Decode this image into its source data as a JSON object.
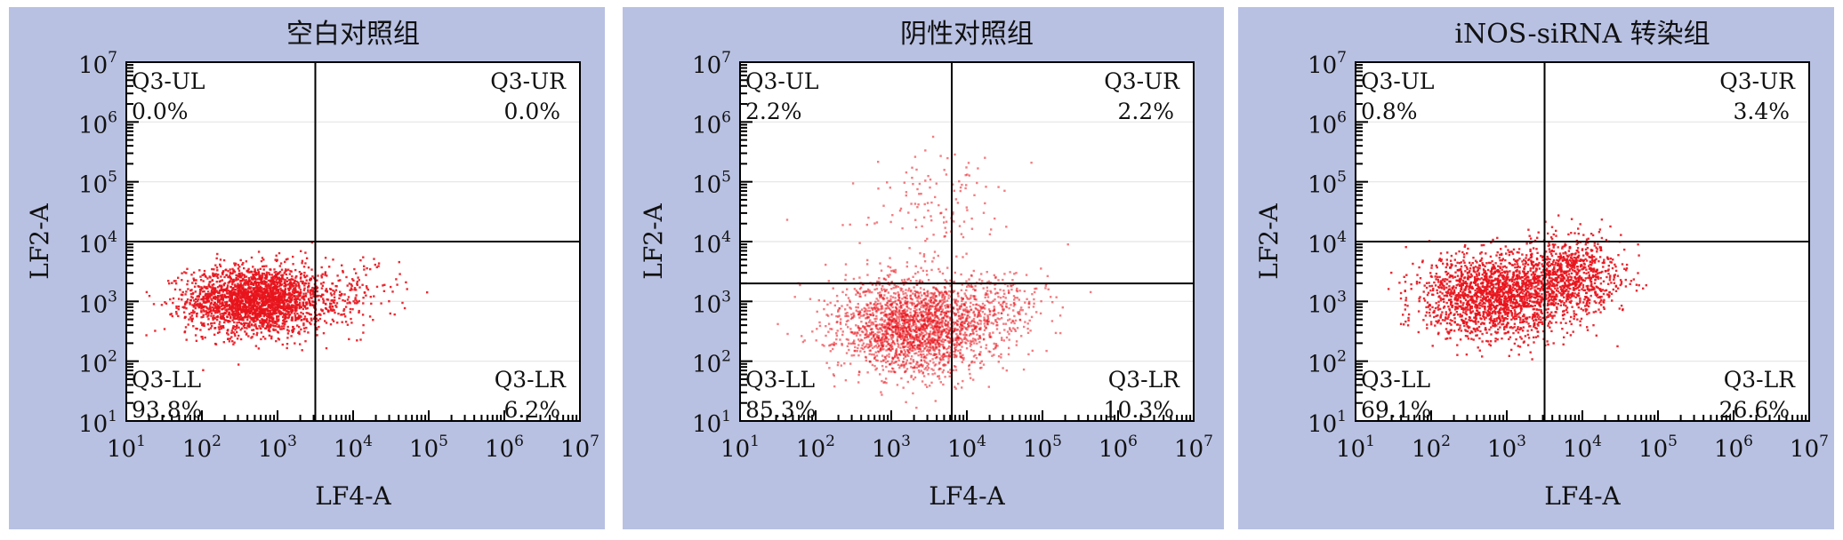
{
  "chart_data": [
    {
      "type": "scatter",
      "title": "空白对照组",
      "xlabel": "LF4-A",
      "ylabel": "LF2-A",
      "xscale": "log",
      "yscale": "log",
      "xlim": [
        10,
        10000000
      ],
      "ylim": [
        10,
        10000000
      ],
      "x_ticks": [
        "10^1",
        "10^2",
        "10^3",
        "10^4",
        "10^5",
        "10^6",
        "10^7"
      ],
      "y_ticks": [
        "10^1",
        "10^2",
        "10^3",
        "10^4",
        "10^5",
        "10^6",
        "10^7"
      ],
      "gate": {
        "x": 3162,
        "y": 10000
      },
      "quadrants": [
        {
          "name": "Q3-UL",
          "value": "0.0%",
          "pos": "top-left"
        },
        {
          "name": "Q3-UR",
          "value": "0.0%",
          "pos": "top-right"
        },
        {
          "name": "Q3-LL",
          "value": "93.8%",
          "pos": "bottom-left"
        },
        {
          "name": "Q3-LR",
          "value": "6.2%",
          "pos": "bottom-right"
        }
      ],
      "point_color": "#e8141c",
      "population": [
        {
          "center": [
            500,
            1100
          ],
          "spread_log": [
            0.45,
            0.28
          ],
          "share": 0.94
        },
        {
          "center": [
            8000,
            1300
          ],
          "spread_log": [
            0.35,
            0.3
          ],
          "share": 0.06
        }
      ]
    },
    {
      "type": "scatter",
      "title": "阴性对照组",
      "xlabel": "LF4-A",
      "ylabel": "LF2-A",
      "xscale": "log",
      "yscale": "log",
      "xlim": [
        10,
        10000000
      ],
      "ylim": [
        10,
        10000000
      ],
      "x_ticks": [
        "10^1",
        "10^2",
        "10^3",
        "10^4",
        "10^5",
        "10^6",
        "10^7"
      ],
      "y_ticks": [
        "10^1",
        "10^2",
        "10^3",
        "10^4",
        "10^5",
        "10^6",
        "10^7"
      ],
      "gate": {
        "x": 6310,
        "y": 2000
      },
      "quadrants": [
        {
          "name": "Q3-UL",
          "value": "2.2%",
          "pos": "top-left"
        },
        {
          "name": "Q3-UR",
          "value": "2.2%",
          "pos": "top-right"
        },
        {
          "name": "Q3-LL",
          "value": "85.3%",
          "pos": "bottom-left"
        },
        {
          "name": "Q3-LR",
          "value": "10.3%",
          "pos": "bottom-right"
        }
      ],
      "point_color": "#e8141c",
      "population": [
        {
          "center": [
            2000,
            400
          ],
          "spread_log": [
            0.5,
            0.4
          ],
          "share": 0.85
        },
        {
          "center": [
            25000,
            800
          ],
          "spread_log": [
            0.35,
            0.35
          ],
          "share": 0.1
        },
        {
          "center": [
            3000,
            40000
          ],
          "spread_log": [
            0.55,
            0.5
          ],
          "share": 0.05
        }
      ]
    },
    {
      "type": "scatter",
      "title": "iNOS-siRNA 转染组",
      "xlabel": "LF4-A",
      "ylabel": "LF2-A",
      "xscale": "log",
      "yscale": "log",
      "xlim": [
        10,
        10000000
      ],
      "ylim": [
        10,
        10000000
      ],
      "x_ticks": [
        "10^1",
        "10^2",
        "10^3",
        "10^4",
        "10^5",
        "10^6",
        "10^7"
      ],
      "y_ticks": [
        "10^1",
        "10^2",
        "10^3",
        "10^4",
        "10^5",
        "10^6",
        "10^7"
      ],
      "gate": {
        "x": 3162,
        "y": 10000
      },
      "quadrants": [
        {
          "name": "Q3-UL",
          "value": "0.8%",
          "pos": "top-left"
        },
        {
          "name": "Q3-UR",
          "value": "3.4%",
          "pos": "top-right"
        },
        {
          "name": "Q3-LL",
          "value": "69.1%",
          "pos": "bottom-left"
        },
        {
          "name": "Q3-LR",
          "value": "26.6%",
          "pos": "bottom-right"
        }
      ],
      "point_color": "#e8141c",
      "population": [
        {
          "center": [
            700,
            1300
          ],
          "spread_log": [
            0.5,
            0.35
          ],
          "share": 0.7
        },
        {
          "center": [
            7000,
            3000
          ],
          "spread_log": [
            0.35,
            0.33
          ],
          "share": 0.3
        }
      ]
    }
  ]
}
